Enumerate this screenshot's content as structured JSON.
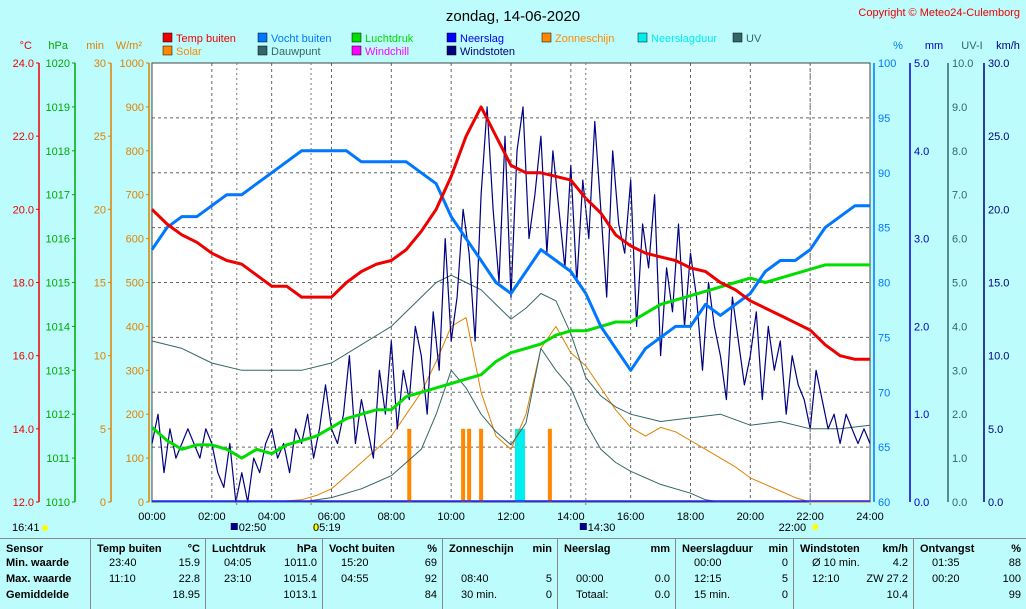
{
  "title": "zondag, 14-06-2020",
  "copyright": "Copyright © Meteo24-Culemborg",
  "colors": {
    "temp": "#ee0000",
    "humidity": "#0077ff",
    "pressure": "#00dd00",
    "rain": "#0000ff",
    "gust": "#000080",
    "sunshine": "#ff8800",
    "raindur": "#00eeee",
    "uv": "#336666",
    "solar": "#e08000",
    "dew": "#336666",
    "windchill": "#ff00ff"
  },
  "legend": [
    {
      "label": "Temp buiten",
      "color": "#ee0000"
    },
    {
      "label": "Vocht buiten",
      "color": "#0077ff"
    },
    {
      "label": "Luchtdruk",
      "color": "#00dd00"
    },
    {
      "label": "Neerslag",
      "color": "#0000ff"
    },
    {
      "label": "Zonneschijn",
      "color": "#ff8800"
    },
    {
      "label": "Neerslagduur",
      "color": "#00eeee"
    },
    {
      "label": "UV",
      "color": "#336666"
    },
    {
      "label": "Solar",
      "color": "#ff8800"
    },
    {
      "label": "Dauwpunt",
      "color": "#336666"
    },
    {
      "label": "Windchill",
      "color": "#ff00ff"
    },
    {
      "label": "Windstoten",
      "color": "#000080"
    }
  ],
  "chart_data": {
    "type": "line",
    "x_ticks": [
      "00:00",
      "02:00",
      "04:00",
      "06:00",
      "08:00",
      "10:00",
      "12:00",
      "14:00",
      "16:00",
      "18:00",
      "20:00",
      "22:00",
      "24:00"
    ],
    "axes": {
      "temp": {
        "unit": "°C",
        "ticks": [
          "24.0",
          "22.0",
          "20.0",
          "18.0",
          "16.0",
          "14.0",
          "12.0"
        ],
        "range": [
          12,
          24
        ]
      },
      "pressure": {
        "unit": "hPa",
        "ticks": [
          "1020",
          "1019",
          "1018",
          "1017",
          "1016",
          "1015",
          "1014",
          "1013",
          "1012",
          "1011",
          "1010"
        ],
        "range": [
          1010,
          1020
        ]
      },
      "minutes": {
        "unit": "min",
        "ticks": [
          "30",
          "25",
          "20",
          "15",
          "10",
          "5",
          "0"
        ],
        "range": [
          0,
          30
        ]
      },
      "solar": {
        "unit": "W/m²",
        "ticks": [
          "1000",
          "900",
          "800",
          "700",
          "600",
          "500",
          "400",
          "300",
          "200",
          "100",
          "0"
        ],
        "range": [
          0,
          1000
        ]
      },
      "humidity": {
        "unit": "%",
        "ticks": [
          "100",
          "95",
          "90",
          "85",
          "80",
          "75",
          "70",
          "65",
          "60"
        ],
        "range": [
          60,
          100
        ]
      },
      "rain": {
        "unit": "mm",
        "ticks": [
          "5.0",
          "4.0",
          "3.0",
          "2.0",
          "1.0",
          "0.0"
        ],
        "range": [
          0,
          5
        ]
      },
      "uv": {
        "unit": "UV-I",
        "ticks": [
          "10.0",
          "9.0",
          "8.0",
          "7.0",
          "6.0",
          "5.0",
          "4.0",
          "3.0",
          "2.0",
          "1.0",
          "0.0"
        ],
        "range": [
          0,
          10
        ]
      },
      "wind": {
        "unit": "km/h",
        "ticks": [
          "30.0",
          "25.0",
          "20.0",
          "15.0",
          "10.0",
          "5.0",
          "0.0"
        ],
        "range": [
          0,
          30
        ]
      }
    },
    "series": [
      {
        "name": "Temp buiten",
        "axis": "temp",
        "x": [
          0,
          0.5,
          1,
          1.5,
          2,
          2.5,
          3,
          3.5,
          4,
          4.5,
          5,
          5.5,
          6,
          6.5,
          7,
          7.5,
          8,
          8.5,
          9,
          9.5,
          10,
          10.5,
          11,
          11.5,
          12,
          12.5,
          13,
          13.5,
          14,
          14.5,
          15,
          15.5,
          16,
          16.5,
          17,
          17.5,
          18,
          18.5,
          19,
          19.5,
          20,
          20.5,
          21,
          21.5,
          22,
          22.5,
          23,
          23.5,
          24
        ],
        "y": [
          20.0,
          19.6,
          19.3,
          19.1,
          18.8,
          18.6,
          18.5,
          18.2,
          17.9,
          17.9,
          17.6,
          17.6,
          17.6,
          18.0,
          18.3,
          18.5,
          18.6,
          18.9,
          19.4,
          20.0,
          20.9,
          22.0,
          22.8,
          22.0,
          21.2,
          21.0,
          21.0,
          20.9,
          20.8,
          20.3,
          19.9,
          19.3,
          19.0,
          18.8,
          18.7,
          18.6,
          18.4,
          18.3,
          18.0,
          17.8,
          17.5,
          17.3,
          17.1,
          16.9,
          16.7,
          16.3,
          16.0,
          15.9,
          15.9
        ]
      },
      {
        "name": "Vocht buiten",
        "axis": "humidity",
        "x": [
          0,
          0.5,
          1,
          1.5,
          2,
          2.5,
          3,
          3.5,
          4,
          4.5,
          5,
          5.5,
          6,
          6.5,
          7,
          7.5,
          8,
          8.5,
          9,
          9.5,
          10,
          10.5,
          11,
          11.5,
          12,
          12.5,
          13,
          13.5,
          14,
          14.5,
          15,
          15.5,
          16,
          16.5,
          17,
          17.5,
          18,
          18.5,
          19,
          19.5,
          20,
          20.5,
          21,
          21.5,
          22,
          22.5,
          23,
          23.5,
          24
        ],
        "y": [
          83,
          85,
          86,
          86,
          87,
          88,
          88,
          89,
          90,
          91,
          92,
          92,
          92,
          92,
          91,
          91,
          91,
          91,
          90,
          89,
          86,
          84,
          82,
          80,
          79,
          81,
          83,
          82,
          81,
          79,
          76,
          74,
          72,
          74,
          75,
          76,
          76,
          78,
          77,
          78,
          79,
          81,
          82,
          82,
          83,
          85,
          86,
          87,
          87
        ]
      },
      {
        "name": "Luchtdruk",
        "axis": "pressure",
        "x": [
          0,
          0.5,
          1,
          1.5,
          2,
          2.5,
          3,
          3.5,
          4,
          4.5,
          5,
          5.5,
          6,
          6.5,
          7,
          7.5,
          8,
          8.5,
          9,
          9.5,
          10,
          10.5,
          11,
          11.5,
          12,
          12.5,
          13,
          13.5,
          14,
          14.5,
          15,
          15.5,
          16,
          16.5,
          17,
          17.5,
          18,
          18.5,
          19,
          19.5,
          20,
          20.5,
          21,
          21.5,
          22,
          22.5,
          23,
          23.5,
          24
        ],
        "y": [
          1011.7,
          1011.4,
          1011.2,
          1011.3,
          1011.3,
          1011.2,
          1011.0,
          1011.2,
          1011.1,
          1011.3,
          1011.4,
          1011.5,
          1011.7,
          1011.9,
          1012.0,
          1012.1,
          1012.1,
          1012.4,
          1012.5,
          1012.6,
          1012.7,
          1012.8,
          1012.9,
          1013.2,
          1013.4,
          1013.5,
          1013.6,
          1013.8,
          1013.9,
          1013.9,
          1014.0,
          1014.1,
          1014.1,
          1014.3,
          1014.5,
          1014.6,
          1014.7,
          1014.8,
          1014.9,
          1015.0,
          1015.1,
          1015.0,
          1015.1,
          1015.2,
          1015.3,
          1015.4,
          1015.4,
          1015.4,
          1015.4
        ]
      },
      {
        "name": "Dauwpunt",
        "axis": "temp",
        "x": [
          0,
          1,
          2,
          3,
          4,
          5,
          6,
          7,
          8,
          9,
          9.5,
          10,
          10.5,
          11,
          11.5,
          12,
          12.5,
          13,
          13.5,
          14,
          14.5,
          15,
          15.5,
          16,
          17,
          18,
          19,
          20,
          21,
          22,
          23,
          24
        ],
        "y": [
          16.4,
          16.2,
          15.8,
          15.6,
          15.6,
          15.6,
          15.8,
          16.3,
          16.8,
          17.6,
          18.0,
          18.2,
          18.0,
          17.8,
          17.4,
          17.0,
          17.3,
          17.7,
          17.5,
          16.6,
          15.4,
          14.9,
          14.6,
          14.4,
          14.2,
          14.3,
          14.4,
          14.1,
          14.2,
          14.0,
          14.0,
          14.1
        ]
      },
      {
        "name": "Solar",
        "axis": "solar",
        "x": [
          0,
          4,
          5,
          5.5,
          6,
          6.5,
          7,
          7.5,
          8,
          8.5,
          9,
          9.5,
          10,
          10.5,
          11,
          11.5,
          12,
          12.5,
          13,
          13.5,
          14,
          14.5,
          15,
          15.5,
          16,
          16.5,
          17,
          17.5,
          18,
          18.5,
          19,
          19.5,
          20,
          20.5,
          21,
          21.5,
          22,
          24
        ],
        "y": [
          0,
          0,
          5,
          15,
          30,
          60,
          90,
          120,
          150,
          200,
          250,
          320,
          400,
          420,
          250,
          150,
          120,
          200,
          350,
          400,
          340,
          310,
          260,
          210,
          170,
          150,
          170,
          160,
          140,
          120,
          100,
          80,
          55,
          40,
          25,
          10,
          0,
          0
        ]
      },
      {
        "name": "UV",
        "axis": "uv",
        "x": [
          0,
          5,
          6,
          7,
          8,
          9,
          9.5,
          10,
          10.5,
          11,
          11.5,
          12,
          12.5,
          13,
          13.5,
          14,
          14.5,
          15,
          15.5,
          16,
          17,
          18,
          18.5,
          19
        ],
        "y": [
          0,
          0,
          0.1,
          0.3,
          0.6,
          1.2,
          2.0,
          3.0,
          2.6,
          2.0,
          1.6,
          1.3,
          1.8,
          3.5,
          3.0,
          2.6,
          1.8,
          1.2,
          0.9,
          0.7,
          0.4,
          0.2,
          0.05,
          0
        ]
      },
      {
        "name": "Windstoten",
        "axis": "wind",
        "x": [
          0,
          0.2,
          0.4,
          0.6,
          0.8,
          1,
          1.2,
          1.4,
          1.6,
          1.8,
          2,
          2.2,
          2.4,
          2.6,
          2.8,
          3,
          3.2,
          3.4,
          3.6,
          3.8,
          4,
          4.2,
          4.4,
          4.6,
          4.8,
          5,
          5.2,
          5.4,
          5.6,
          5.8,
          6,
          6.2,
          6.4,
          6.6,
          6.8,
          7,
          7.2,
          7.4,
          7.6,
          7.8,
          8,
          8.2,
          8.4,
          8.6,
          8.8,
          9,
          9.2,
          9.4,
          9.6,
          9.8,
          10,
          10.2,
          10.4,
          10.6,
          10.8,
          11,
          11.2,
          11.4,
          11.6,
          11.8,
          12,
          12.2,
          12.4,
          12.6,
          12.8,
          13,
          13.2,
          13.4,
          13.6,
          13.8,
          14,
          14.2,
          14.4,
          14.6,
          14.8,
          15,
          15.2,
          15.4,
          15.6,
          15.8,
          16,
          16.2,
          16.4,
          16.6,
          16.8,
          17,
          17.2,
          17.4,
          17.6,
          17.8,
          18,
          18.2,
          18.4,
          18.6,
          18.8,
          19,
          19.2,
          19.4,
          19.6,
          19.8,
          20,
          20.2,
          20.4,
          20.6,
          20.8,
          21,
          21.2,
          21.4,
          21.6,
          21.8,
          22,
          22.2,
          22.4,
          22.6,
          22.8,
          23,
          23.2,
          23.4,
          23.6,
          23.8,
          24
        ],
        "y": [
          4,
          6,
          2,
          5,
          3,
          4,
          5,
          4,
          3,
          5,
          4,
          2,
          1,
          4,
          0,
          2,
          0,
          3,
          2,
          4,
          5,
          3,
          4,
          2,
          5,
          4,
          6,
          3,
          5,
          8,
          5,
          4,
          6,
          10,
          4,
          7,
          5,
          3,
          9,
          6,
          11,
          5,
          9,
          7,
          12,
          10,
          6,
          13,
          9,
          18,
          11,
          14,
          20,
          17,
          11,
          21,
          27,
          20,
          15,
          25,
          14,
          24,
          27,
          18,
          21,
          25,
          17,
          24,
          20,
          16,
          23,
          15,
          22,
          18,
          26,
          20,
          14,
          24,
          19,
          17,
          22,
          12,
          19,
          16,
          21,
          10,
          16,
          13,
          19,
          12,
          17,
          14,
          9,
          15,
          12,
          10,
          7,
          14,
          11,
          8,
          10,
          13,
          7,
          12,
          9,
          11,
          6,
          10,
          8,
          7,
          5,
          9,
          7,
          5,
          6,
          4,
          6,
          5,
          4,
          5,
          4
        ]
      }
    ],
    "bars": [
      {
        "name": "Zonneschijn",
        "axis": "minutes",
        "x": [
          8.6,
          10.4,
          10.6,
          11.0,
          13.3
        ],
        "y": [
          5,
          5,
          5,
          5,
          5
        ]
      },
      {
        "name": "Neerslagduur",
        "axis": "minutes",
        "x": [
          12.2,
          12.3,
          12.4
        ],
        "y": [
          5,
          5,
          5
        ]
      }
    ]
  },
  "markers": {
    "sunrise": "05:19",
    "sunset": "22:00",
    "moonrise": "02:50",
    "moonset": "14:30",
    "sun_left": "16:41"
  },
  "stats": [
    {
      "title": "Sensor",
      "unit": "",
      "rows": [
        [
          "Min. waarde",
          "",
          ""
        ],
        [
          "Max. waarde",
          "",
          ""
        ],
        [
          "Gemiddelde",
          "",
          ""
        ]
      ]
    },
    {
      "title": "Temp buiten",
      "unit": "°C",
      "rows": [
        [
          "23:40",
          "15.9"
        ],
        [
          "11:10",
          "22.8"
        ],
        [
          "",
          "18.95"
        ]
      ]
    },
    {
      "title": "Luchtdruk",
      "unit": "hPa",
      "rows": [
        [
          "04:05",
          "1011.0"
        ],
        [
          "23:10",
          "1015.4"
        ],
        [
          "",
          "1013.1"
        ]
      ]
    },
    {
      "title": "Vocht buiten",
      "unit": "%",
      "rows": [
        [
          "15:20",
          "69"
        ],
        [
          "04:55",
          "92"
        ],
        [
          "",
          "84"
        ]
      ]
    },
    {
      "title": "Zonneschijn",
      "unit": "min",
      "rows": [
        [
          "",
          ""
        ],
        [
          "08:40",
          "5"
        ],
        [
          "30 min.",
          "0"
        ]
      ]
    },
    {
      "title": "Neerslag",
      "unit": "mm",
      "rows": [
        [
          "",
          ""
        ],
        [
          "00:00",
          "0.0"
        ],
        [
          "Totaal:",
          "0.0"
        ]
      ]
    },
    {
      "title": "Neerslagduur",
      "unit": "min",
      "rows": [
        [
          "00:00",
          "0"
        ],
        [
          "12:15",
          "5"
        ],
        [
          "15 min.",
          "0"
        ]
      ]
    },
    {
      "title": "Windstoten",
      "unit": "km/h",
      "rows": [
        [
          "Ø 10 min.",
          "4.2"
        ],
        [
          "12:10",
          "ZW 27.2"
        ],
        [
          "",
          "10.4"
        ]
      ]
    },
    {
      "title": "Ontvangst",
      "unit": "%",
      "rows": [
        [
          "01:35",
          "88"
        ],
        [
          "00:20",
          "100"
        ],
        [
          "",
          "99"
        ]
      ]
    }
  ]
}
